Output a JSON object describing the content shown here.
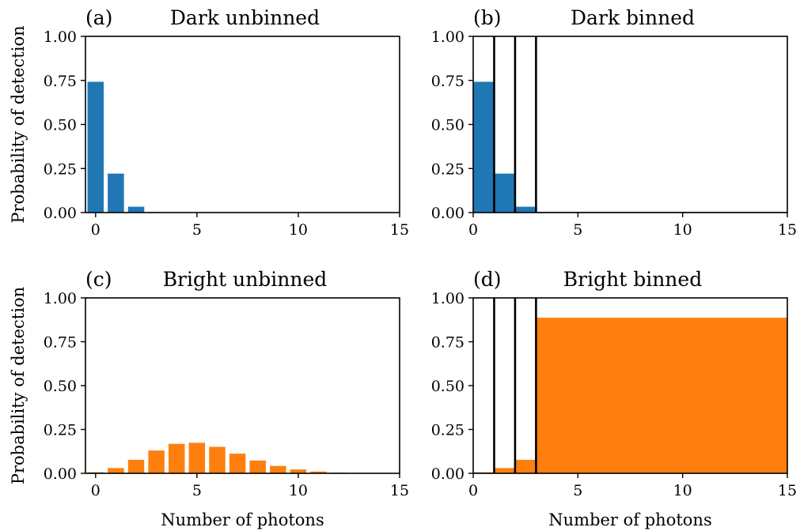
{
  "chart_data": [
    {
      "type": "bar",
      "tag": "(a)",
      "title": "Dark unbinned",
      "xlabel": "",
      "ylabel": "Probability of detection",
      "xlim": [
        -0.5,
        15
      ],
      "ylim": [
        0,
        1
      ],
      "xticks": [
        "0",
        "5",
        "10",
        "15"
      ],
      "yticks": [
        "0.00",
        "0.25",
        "0.50",
        "0.75",
        "1.00"
      ],
      "color": "#1f77b4",
      "x": [
        0,
        1,
        2,
        3,
        4,
        5,
        6,
        7,
        8,
        9,
        10,
        11,
        12,
        13,
        14
      ],
      "values": [
        0.742,
        0.221,
        0.033,
        0.003,
        0.0002,
        0,
        0,
        0,
        0,
        0,
        0,
        0,
        0,
        0,
        0
      ],
      "bins": []
    },
    {
      "type": "bar",
      "tag": "(b)",
      "title": "Dark binned",
      "xlabel": "",
      "ylabel": "",
      "xlim": [
        0,
        15
      ],
      "ylim": [
        0,
        1
      ],
      "xticks": [
        "0",
        "5",
        "10",
        "15"
      ],
      "yticks": [
        "0.00",
        "0.25",
        "0.50",
        "0.75",
        "1.00"
      ],
      "color": "#1f77b4",
      "bins": [
        {
          "start": 0,
          "end": 1,
          "value": 0.742
        },
        {
          "start": 1,
          "end": 2,
          "value": 0.221
        },
        {
          "start": 2,
          "end": 3,
          "value": 0.033
        },
        {
          "start": 3,
          "end": 15,
          "value": 0.004
        }
      ],
      "bin_edges": [
        1,
        2,
        3
      ]
    },
    {
      "type": "bar",
      "tag": "(c)",
      "title": "Bright unbinned",
      "xlabel": "Number of photons",
      "ylabel": "Probability of detection",
      "xlim": [
        -0.5,
        15
      ],
      "ylim": [
        0,
        1
      ],
      "xticks": [
        "0",
        "5",
        "10",
        "15"
      ],
      "yticks": [
        "0.00",
        "0.25",
        "0.50",
        "0.75",
        "1.00"
      ],
      "color": "#ff7f0e",
      "x": [
        0,
        1,
        2,
        3,
        4,
        5,
        6,
        7,
        8,
        9,
        10,
        11,
        12,
        13,
        14
      ],
      "values": [
        0.006,
        0.03,
        0.077,
        0.13,
        0.168,
        0.174,
        0.151,
        0.112,
        0.073,
        0.042,
        0.022,
        0.01,
        0.004,
        0.002,
        0.001
      ],
      "bins": []
    },
    {
      "type": "bar",
      "tag": "(d)",
      "title": "Bright binned",
      "xlabel": "Number of photons",
      "ylabel": "",
      "xlim": [
        0,
        15
      ],
      "ylim": [
        0,
        1
      ],
      "xticks": [
        "0",
        "5",
        "10",
        "15"
      ],
      "yticks": [
        "0.00",
        "0.25",
        "0.50",
        "0.75",
        "1.00"
      ],
      "color": "#ff7f0e",
      "bins": [
        {
          "start": 0,
          "end": 1,
          "value": 0.006
        },
        {
          "start": 1,
          "end": 2,
          "value": 0.03
        },
        {
          "start": 2,
          "end": 3,
          "value": 0.077
        },
        {
          "start": 3,
          "end": 15,
          "value": 0.887
        }
      ],
      "bin_edges": [
        1,
        2,
        3
      ]
    }
  ]
}
